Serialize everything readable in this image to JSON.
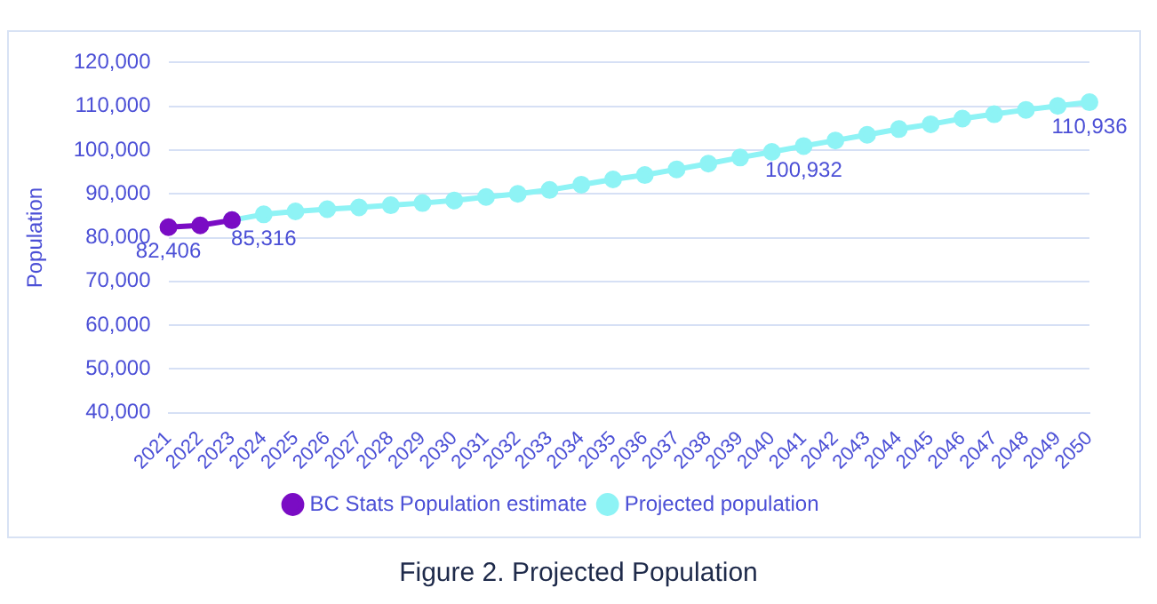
{
  "chart_data": {
    "type": "line",
    "ylabel": "Population",
    "annotations": [
      "Figure 2. Projected Population"
    ],
    "categories": [
      "2021",
      "2022",
      "2023",
      "2024",
      "2025",
      "2026",
      "2027",
      "2028",
      "2029",
      "2030",
      "2031",
      "2032",
      "2033",
      "2034",
      "2035",
      "2036",
      "2037",
      "2038",
      "2039",
      "2040",
      "2041",
      "2042",
      "2043",
      "2044",
      "2045",
      "2046",
      "2047",
      "2048",
      "2049",
      "2050"
    ],
    "series": [
      {
        "name": "BC Stats Population estimate",
        "color": "#7a0cc4",
        "values": [
          82406,
          82800,
          84000,
          null,
          null,
          null,
          null,
          null,
          null,
          null,
          null,
          null,
          null,
          null,
          null,
          null,
          null,
          null,
          null,
          null,
          null,
          null,
          null,
          null,
          null,
          null,
          null,
          null,
          null,
          null
        ],
        "value_labels": [
          "82,406",
          null,
          null,
          null,
          null,
          null,
          null,
          null,
          null,
          null,
          null,
          null,
          null,
          null,
          null,
          null,
          null,
          null,
          null,
          null,
          null,
          null,
          null,
          null,
          null,
          null,
          null,
          null,
          null,
          null
        ]
      },
      {
        "name": "Projected population",
        "color": "#8ef3f5",
        "values": [
          null,
          null,
          84000,
          85316,
          86000,
          86500,
          86900,
          87400,
          87900,
          88500,
          89300,
          90000,
          90900,
          92100,
          93300,
          94300,
          95600,
          96900,
          98300,
          99600,
          100932,
          102200,
          103500,
          104800,
          105900,
          107200,
          108200,
          109200,
          110100,
          110936
        ],
        "value_labels": [
          null,
          null,
          null,
          "85,316",
          null,
          null,
          null,
          null,
          null,
          null,
          null,
          null,
          null,
          null,
          null,
          null,
          null,
          null,
          null,
          null,
          "100,932",
          null,
          null,
          null,
          null,
          null,
          null,
          null,
          null,
          "110,936"
        ]
      }
    ],
    "ylim": [
      40000,
      120000
    ],
    "yticks": [
      {
        "value": 40000,
        "label": "40,000"
      },
      {
        "value": 50000,
        "label": "50,000"
      },
      {
        "value": 60000,
        "label": "60,000"
      },
      {
        "value": 70000,
        "label": "70,000"
      },
      {
        "value": 80000,
        "label": "80,000"
      },
      {
        "value": 90000,
        "label": "90,000"
      },
      {
        "value": 100000,
        "label": "100,000"
      },
      {
        "value": 110000,
        "label": "110,000"
      },
      {
        "value": 120000,
        "label": "120,000"
      }
    ],
    "grid": "y",
    "legend": "bottom",
    "marker": "circle",
    "line_style": "solid"
  }
}
